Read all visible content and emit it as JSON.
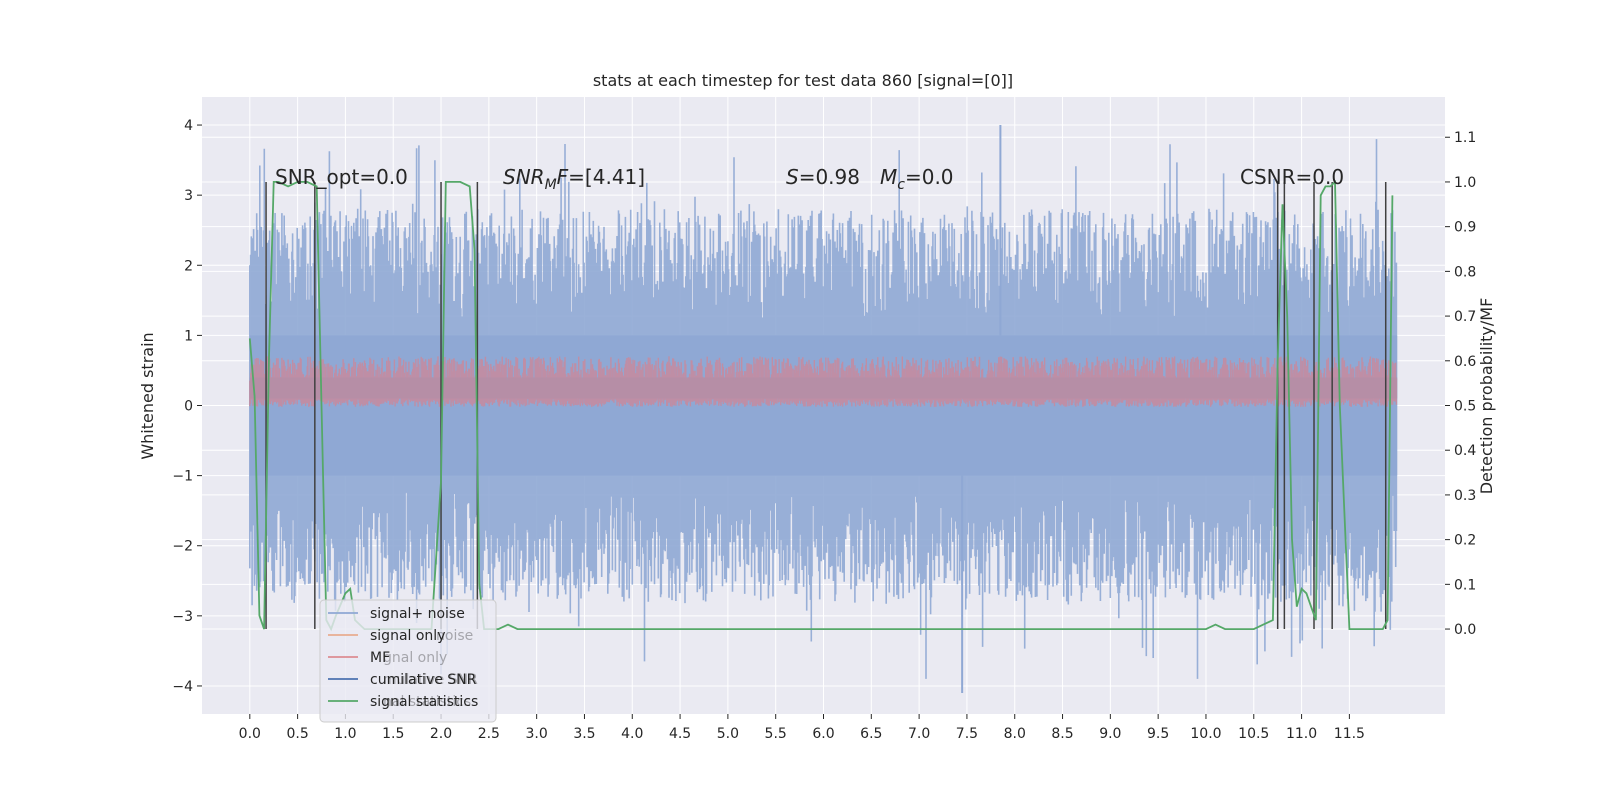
{
  "chart_data": {
    "type": "line",
    "title": "stats at each timestep for test data 860 [signal=[0]]",
    "xlabel": "",
    "ylabel": "Whitened strain",
    "y2label": "Detection probability/MF",
    "xlim": [
      -0.5,
      12.5
    ],
    "ylim": [
      -4.4,
      4.4
    ],
    "y2lim": [
      -0.19,
      1.19
    ],
    "xticks": [
      "0.0",
      "0.5",
      "1.0",
      "1.5",
      "2.0",
      "2.5",
      "3.0",
      "3.5",
      "4.0",
      "4.5",
      "5.0",
      "5.5",
      "6.0",
      "6.5",
      "7.0",
      "7.5",
      "8.0",
      "8.5",
      "9.0",
      "9.5",
      "10.0",
      "10.5",
      "11.0",
      "11.5"
    ],
    "yticks": [
      "4",
      "3",
      "2",
      "1",
      "0",
      "−1",
      "−2",
      "−3",
      "−4"
    ],
    "y2ticks": [
      "1.1",
      "1.0",
      "0.9",
      "0.8",
      "0.7",
      "0.6",
      "0.5",
      "0.4",
      "0.3",
      "0.2",
      "0.1",
      "0.0"
    ],
    "grid": true,
    "legend_position": "lower-left",
    "annotations": {
      "snr_opt": "SNR_opt=0.0",
      "snr_mf_italic": "SNR",
      "snr_mf_sub": "M",
      "snr_mf_rest": "F",
      "snr_mf_value": "=[4.41]",
      "s_label": "S",
      "s_value": "=0.98",
      "mc_label": "M",
      "mc_sub": "c",
      "mc_value": "=0.0",
      "csnr": "CSNR=0.0"
    },
    "legend": [
      {
        "label": "signal+ noise",
        "color": "#8fa8d4"
      },
      {
        "label": "signal only",
        "color": "#e8ac90"
      },
      {
        "label": "MF",
        "color": "#dd8d92"
      },
      {
        "label": "cumilative SNR",
        "color": "#4c72b0"
      },
      {
        "label": "signal statistics",
        "color": "#55a868"
      }
    ],
    "ghost_legend_text": [
      "noise",
      "gnal only",
      "mulative SNR",
      "nal statistics"
    ],
    "series": [
      {
        "name": "signal statistics",
        "axis": "right",
        "color": "#55a868",
        "x": [
          0.0,
          0.05,
          0.1,
          0.15,
          0.2,
          0.25,
          0.3,
          0.4,
          0.5,
          0.6,
          0.7,
          0.75,
          0.8,
          0.85,
          0.9,
          1.0,
          1.05,
          1.1,
          1.2,
          1.3,
          1.5,
          1.7,
          1.9,
          2.0,
          2.05,
          2.1,
          2.2,
          2.3,
          2.35,
          2.4,
          2.45,
          2.6,
          2.7,
          2.8,
          3.0,
          3.3,
          3.4,
          4.0,
          6.0,
          6.5,
          6.6,
          7.0,
          8.0,
          8.5,
          8.6,
          9.0,
          10.0,
          10.1,
          10.2,
          10.5,
          10.6,
          10.7,
          10.75,
          10.8,
          10.85,
          10.9,
          10.95,
          11.0,
          11.05,
          11.1,
          11.15,
          11.2,
          11.25,
          11.3,
          11.35,
          11.4,
          11.5,
          11.7,
          11.85,
          11.9,
          11.95
        ],
        "values": [
          0.65,
          0.52,
          0.03,
          0.0,
          0.6,
          1.0,
          1.0,
          0.99,
          1.0,
          1.0,
          0.99,
          0.5,
          0.02,
          0.0,
          0.03,
          0.08,
          0.09,
          0.02,
          0.0,
          0.0,
          0.0,
          0.0,
          0.0,
          0.33,
          1.0,
          1.0,
          1.0,
          0.99,
          0.85,
          0.1,
          0.0,
          0.0,
          0.01,
          0.0,
          0.0,
          0.0,
          0.0,
          0.0,
          0.0,
          0.0,
          0.0,
          0.0,
          0.0,
          0.0,
          0.0,
          0.0,
          0.0,
          0.01,
          0.0,
          0.0,
          0.01,
          0.02,
          0.6,
          0.95,
          0.7,
          0.2,
          0.05,
          0.09,
          0.08,
          0.05,
          0.02,
          0.97,
          0.99,
          0.99,
          1.0,
          0.5,
          0.0,
          0.0,
          0.0,
          0.02,
          0.97
        ]
      }
    ],
    "vertical_markers_x": [
      0.17,
      0.68,
      2.0,
      2.38,
      10.75,
      10.82,
      11.13,
      11.32,
      11.88
    ],
    "band_series": [
      {
        "name": "signal+ noise",
        "typical_range": [
          -2.0,
          2.0
        ],
        "extremes": {
          "max": 4.0,
          "min": -4.1
        },
        "x_range": [
          0.0,
          12.0
        ]
      },
      {
        "name": "MF",
        "typical_range": [
          0.0,
          0.6
        ],
        "x_range": [
          0.0,
          12.0
        ]
      }
    ]
  }
}
